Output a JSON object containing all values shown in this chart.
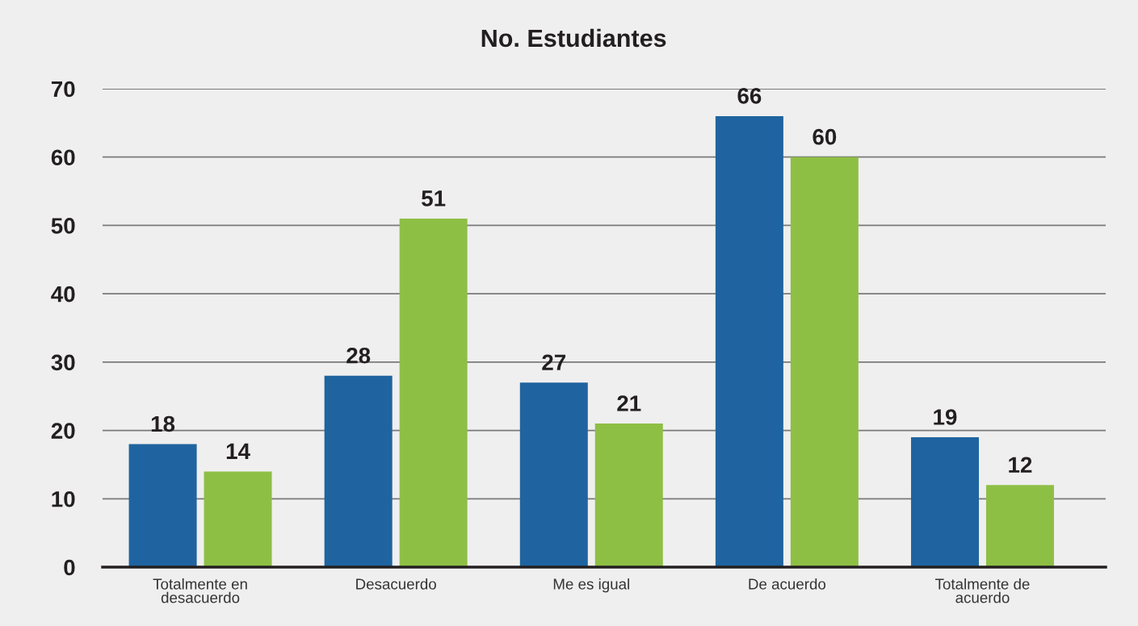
{
  "chart_data": {
    "type": "bar",
    "title": "No. Estudiantes",
    "categories": [
      "Totalmente en\ndesacuerdo",
      "Desacuerdo",
      "Me es igual",
      "De acuerdo",
      "Totalmente de\nacuerdo"
    ],
    "series": [
      {
        "color": "#1f64a0",
        "values": [
          18,
          28,
          27,
          66,
          19
        ]
      },
      {
        "color": "#8ebf45",
        "values": [
          14,
          51,
          21,
          60,
          12
        ]
      }
    ],
    "ylim": [
      0,
      70
    ],
    "yticks": [
      0,
      10,
      20,
      30,
      40,
      50,
      60,
      70
    ],
    "grid": "y",
    "data_labels": true
  }
}
